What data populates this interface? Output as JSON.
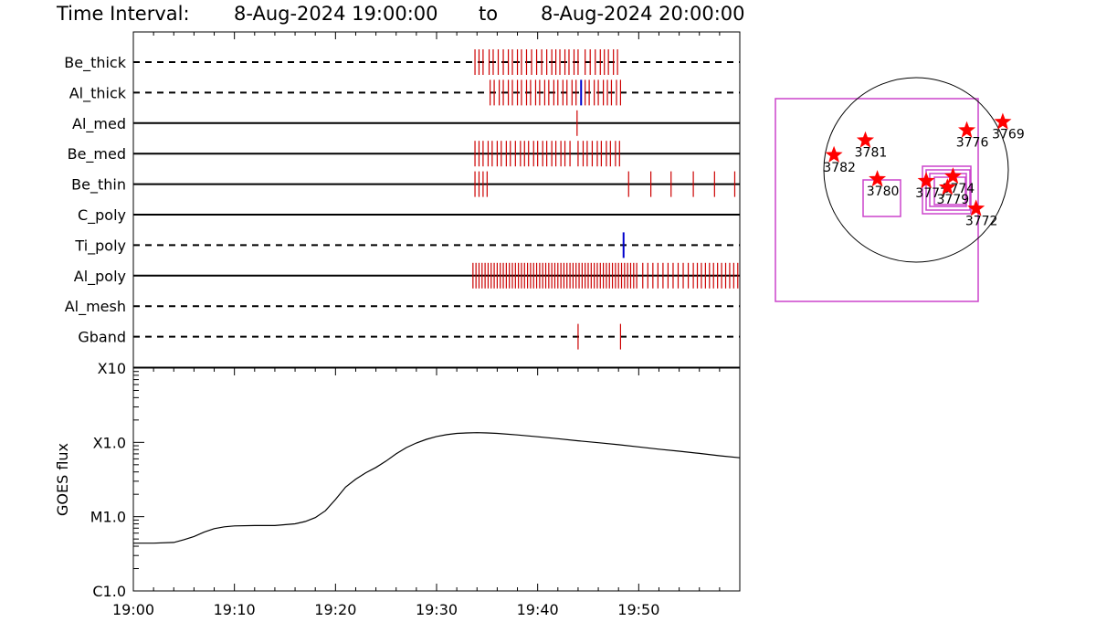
{
  "header": {
    "time_interval_label": "Time Interval:",
    "time_start": "8-Aug-2024 19:00:00",
    "to_word": "to",
    "time_end": "8-Aug-2024 20:00:00"
  },
  "colors": {
    "background": "#ffffff",
    "axis": "#000000",
    "event_red": "#cc0000",
    "event_blue": "#0000cc",
    "box_magenta": "#cc44cc",
    "star_red": "#ff0000"
  },
  "chart_data": [
    {
      "type": "timeline",
      "time_unit": "minutes after 19:00",
      "xlim": [
        0,
        60
      ],
      "x_ticks": [
        {
          "t": 0,
          "label": "19:00"
        },
        {
          "t": 10,
          "label": "19:10"
        },
        {
          "t": 20,
          "label": "19:20"
        },
        {
          "t": 30,
          "label": "19:30"
        },
        {
          "t": 40,
          "label": "19:40"
        },
        {
          "t": 50,
          "label": "19:50"
        }
      ],
      "channels": [
        {
          "name": "Be_thick",
          "line": "dashed",
          "red_events": [
            33.8,
            34.2,
            34.6,
            35.2,
            35.6,
            36.1,
            36.6,
            37.1,
            37.5,
            38.0,
            38.4,
            38.9,
            39.4,
            39.9,
            40.4,
            40.9,
            41.4,
            41.8,
            42.2,
            42.7,
            43.1,
            43.6,
            44.0,
            44.7,
            45.2,
            45.7,
            46.2,
            46.6,
            47.0,
            47.5,
            47.9
          ],
          "blue_events": []
        },
        {
          "name": "Al_thick",
          "line": "dashed",
          "red_events": [
            35.3,
            35.7,
            36.2,
            36.6,
            37.1,
            37.5,
            38.0,
            38.4,
            38.9,
            39.3,
            39.8,
            40.2,
            40.7,
            41.1,
            41.6,
            42.0,
            42.5,
            42.9,
            43.4,
            43.8,
            44.7,
            45.1,
            45.6,
            46.0,
            46.5,
            46.9,
            47.3,
            47.8,
            48.2
          ],
          "blue_events": [
            44.3
          ]
        },
        {
          "name": "Al_med",
          "line": "solid",
          "red_events": [
            43.9
          ],
          "blue_events": []
        },
        {
          "name": "Be_med",
          "line": "solid",
          "red_events": [
            33.8,
            34.2,
            34.6,
            35.1,
            35.5,
            36.0,
            36.4,
            36.9,
            37.3,
            37.8,
            38.3,
            38.7,
            39.1,
            39.6,
            40.0,
            40.5,
            40.9,
            41.4,
            41.8,
            42.3,
            42.7,
            43.2,
            44.0,
            44.5,
            44.9,
            45.4,
            45.9,
            46.3,
            46.8,
            47.2,
            47.7,
            48.1
          ],
          "blue_events": []
        },
        {
          "name": "Be_thin",
          "line": "solid",
          "red_events": [
            33.8,
            34.2,
            34.6,
            35.0,
            49.0,
            51.2,
            53.2,
            55.4,
            57.5,
            59.5
          ],
          "blue_events": []
        },
        {
          "name": "C_poly",
          "line": "solid",
          "red_events": [],
          "blue_events": []
        },
        {
          "name": "Ti_poly",
          "line": "dashed",
          "red_events": [],
          "blue_events": [
            48.5
          ]
        },
        {
          "name": "Al_poly",
          "line": "solid",
          "red_events": [
            33.6,
            33.9,
            34.2,
            34.5,
            34.8,
            35.1,
            35.4,
            35.7,
            36.0,
            36.3,
            36.6,
            36.9,
            37.2,
            37.5,
            37.8,
            38.1,
            38.4,
            38.7,
            39.0,
            39.3,
            39.6,
            39.9,
            40.2,
            40.5,
            40.8,
            41.1,
            41.4,
            41.7,
            42.0,
            42.3,
            42.6,
            42.9,
            43.2,
            43.5,
            43.8,
            44.1,
            44.4,
            44.7,
            45.0,
            45.3,
            45.6,
            45.9,
            46.2,
            46.5,
            46.8,
            47.1,
            47.4,
            47.7,
            48.0,
            48.3,
            48.6,
            48.9,
            49.2,
            49.5,
            49.8,
            50.4,
            50.9,
            51.4,
            51.9,
            52.4,
            52.9,
            53.4,
            53.9,
            54.4,
            54.9,
            55.4,
            55.8,
            56.2,
            56.6,
            57.0,
            57.4,
            57.8,
            58.2,
            58.6,
            59.0,
            59.4,
            59.8
          ],
          "blue_events": []
        },
        {
          "name": "Al_mesh",
          "line": "dashed",
          "red_events": [],
          "blue_events": []
        },
        {
          "name": "Gband",
          "line": "dashed",
          "red_events": [
            44.0,
            48.2
          ],
          "blue_events": []
        }
      ]
    },
    {
      "type": "line",
      "y_label": "GOES flux",
      "y_scale": "log",
      "y_ticks": [
        {
          "value": 1e-06,
          "label": "C1.0"
        },
        {
          "value": 1e-05,
          "label": "M1.0"
        },
        {
          "value": 0.0001,
          "label": "X1.0"
        },
        {
          "value": 0.001,
          "label": "X10"
        }
      ],
      "xlim": [
        0,
        60
      ],
      "ylim": [
        1e-06,
        0.001
      ],
      "series": [
        {
          "t": [
            0,
            2,
            4,
            5,
            6,
            7,
            8,
            9,
            10,
            12,
            14,
            16,
            17,
            18,
            19,
            20,
            21,
            22,
            23,
            24,
            25,
            26,
            27,
            28,
            29,
            30,
            31,
            32,
            33,
            34,
            35,
            36,
            38,
            40,
            42,
            44,
            46,
            48,
            50,
            52,
            54,
            56,
            58,
            60
          ],
          "flux": [
            4.4e-06,
            4.4e-06,
            4.5e-06,
            4.9e-06,
            5.4e-06,
            6.2e-06,
            6.9e-06,
            7.3e-06,
            7.5e-06,
            7.6e-06,
            7.6e-06,
            8e-06,
            8.6e-06,
            9.7e-06,
            1.2e-05,
            1.7e-05,
            2.5e-05,
            3.2e-05,
            3.9e-05,
            4.6e-05,
            5.6e-05,
            7e-05,
            8.5e-05,
            9.8e-05,
            0.00011,
            0.00012,
            0.000127,
            0.000132,
            0.000134,
            0.000135,
            0.000134,
            0.000132,
            0.000126,
            0.000119,
            0.000112,
            0.000105,
            9.9e-05,
            9.3e-05,
            8.7e-05,
            8.1e-05,
            7.6e-05,
            7.1e-05,
            6.6e-05,
            6.2e-05
          ]
        }
      ]
    },
    {
      "type": "map",
      "solar_disk": true,
      "regions": [
        {
          "label": "3769",
          "pos": [
            -0.94,
            -0.52
          ]
        },
        {
          "label": "3776",
          "pos": [
            -0.55,
            -0.43
          ]
        },
        {
          "label": "3781",
          "pos": [
            0.55,
            -0.32
          ]
        },
        {
          "label": "3782",
          "pos": [
            0.89,
            -0.16
          ]
        },
        {
          "label": "3780",
          "pos": [
            0.42,
            0.1
          ]
        },
        {
          "label": "3777",
          "pos": [
            -0.11,
            0.12
          ]
        },
        {
          "label": "3774",
          "pos": [
            -0.4,
            0.07
          ]
        },
        {
          "label": "3779",
          "pos": [
            -0.34,
            0.19
          ]
        },
        {
          "label": "3772",
          "pos": [
            -0.65,
            0.42
          ]
        }
      ]
    }
  ]
}
